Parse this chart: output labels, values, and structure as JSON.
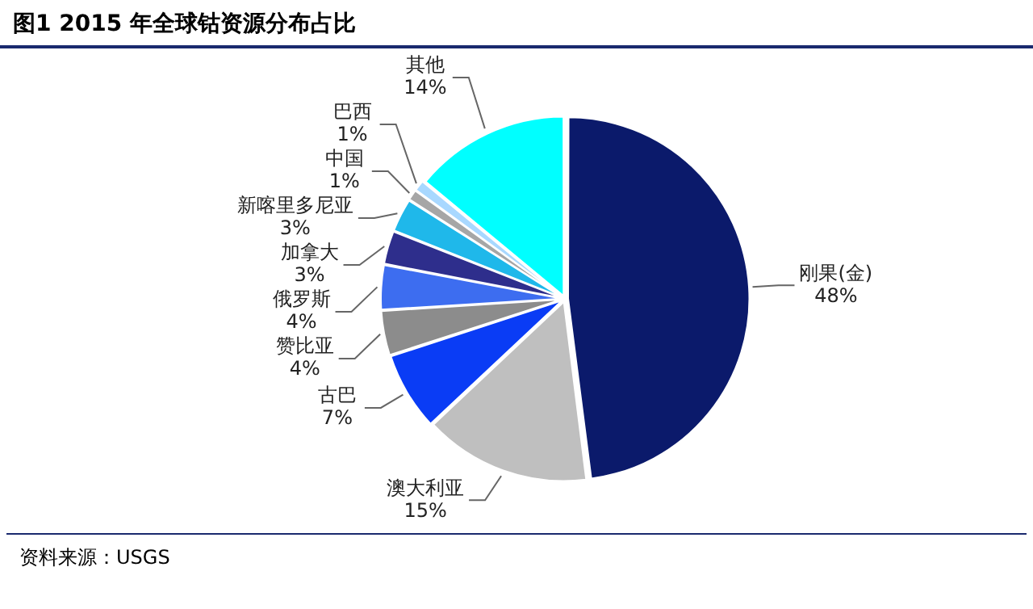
{
  "chart_data": {
    "type": "pie",
    "title": "图1  2015 年全球钴资源分布占比",
    "categories": [
      "刚果(金)",
      "澳大利亚",
      "古巴",
      "赞比亚",
      "俄罗斯",
      "加拿大",
      "新喀里多尼亚",
      "中国",
      "巴西",
      "其他"
    ],
    "values": [
      48,
      15,
      7,
      4,
      4,
      3,
      3,
      1,
      1,
      14
    ],
    "value_labels": [
      "48%",
      "15%",
      "7%",
      "4%",
      "4%",
      "3%",
      "3%",
      "1%",
      "1%",
      "14%"
    ],
    "colors": [
      "#0b1a6b",
      "#bfbfbf",
      "#0a3cf5",
      "#8c8c8c",
      "#3d6df0",
      "#2e2e8c",
      "#1fb8ea",
      "#a6a6a6",
      "#a8d8ff",
      "#00ffff"
    ],
    "legend": false,
    "annotations": [
      "资料来源：USGS"
    ]
  }
}
